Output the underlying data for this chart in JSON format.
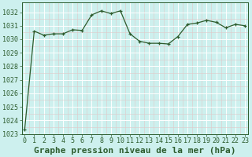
{
  "x": [
    0,
    1,
    2,
    3,
    4,
    5,
    6,
    7,
    8,
    9,
    10,
    11,
    12,
    13,
    14,
    15,
    16,
    17,
    18,
    19,
    20,
    21,
    22,
    23
  ],
  "y": [
    1023.3,
    1030.6,
    1030.3,
    1030.4,
    1030.4,
    1030.7,
    1030.65,
    1031.8,
    1032.1,
    1031.9,
    1032.1,
    1030.4,
    1029.85,
    1029.7,
    1029.7,
    1029.65,
    1030.2,
    1031.1,
    1031.2,
    1031.4,
    1031.25,
    1030.85,
    1031.1,
    1031.0
  ],
  "line_color": "#2d5c2d",
  "marker_color": "#2d5c2d",
  "bg_color": "#cdf0ee",
  "grid_major_color": "#ffffff",
  "grid_minor_color": "#e8d8d8",
  "xlabel": "Graphe pression niveau de la mer (hPa)",
  "xlabel_fontsize": 8,
  "tick_fontsize": 6,
  "ylim_min": 1023,
  "ylim_max": 1032.7,
  "yticks": [
    1023,
    1024,
    1025,
    1026,
    1027,
    1028,
    1029,
    1030,
    1031,
    1032
  ],
  "xticks": [
    0,
    1,
    2,
    3,
    4,
    5,
    6,
    7,
    8,
    9,
    10,
    11,
    12,
    13,
    14,
    15,
    16,
    17,
    18,
    19,
    20,
    21,
    22,
    23
  ],
  "xlim_min": -0.3,
  "xlim_max": 23.3
}
